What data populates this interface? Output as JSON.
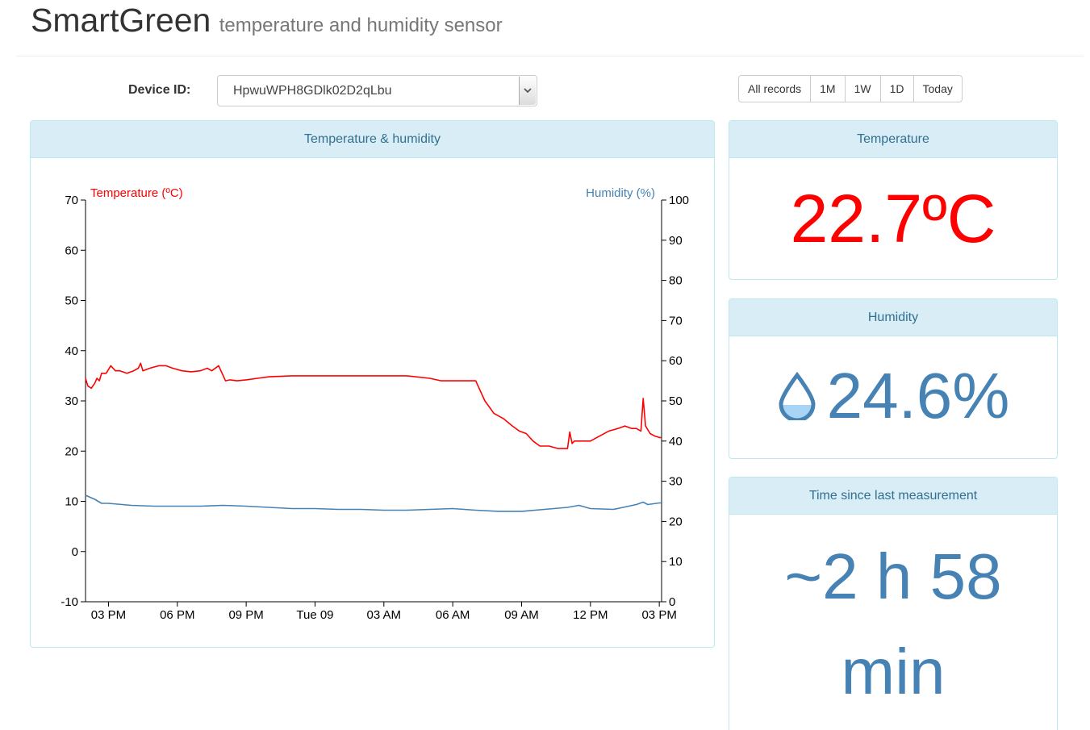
{
  "header": {
    "title": "SmartGreen",
    "subtitle": "temperature and humidity sensor"
  },
  "device": {
    "label": "Device ID:",
    "selected": "HpwuWPH8GDlk02D2qLbu"
  },
  "range_buttons": [
    "All records",
    "1M",
    "1W",
    "1D",
    "Today"
  ],
  "panels": {
    "chart_title": "Temperature & humidity",
    "temperature_title": "Temperature",
    "temperature_value": "22.7ºC",
    "humidity_title": "Humidity",
    "humidity_value": "24.6%",
    "time_title": "Time since last measurement",
    "time_value": "~2 h 58 min"
  },
  "icons": {
    "humidity": "water-drop-icon",
    "select": "chevron-down-icon"
  },
  "colors": {
    "temperature": "#ff0000",
    "humidity": "#4682b4",
    "panel_heading_bg": "#d9edf7",
    "panel_border": "#bce8f1",
    "panel_heading_text": "#31708f"
  },
  "chart_data": {
    "type": "line",
    "x_unit": "hours from 03 PM (Mon 08)",
    "xlim": [
      -1.0,
      24.1
    ],
    "ticks_x": [
      {
        "x": 0,
        "label": "03 PM"
      },
      {
        "x": 3,
        "label": "06 PM"
      },
      {
        "x": 6,
        "label": "09 PM"
      },
      {
        "x": 9,
        "label": "Tue 09"
      },
      {
        "x": 12,
        "label": "03 AM"
      },
      {
        "x": 15,
        "label": "06 AM"
      },
      {
        "x": 18,
        "label": "09 AM"
      },
      {
        "x": 21,
        "label": "12 PM"
      },
      {
        "x": 24,
        "label": "03 PM"
      }
    ],
    "y_left": {
      "label": "Temperature (ºC)",
      "lim": [
        -10,
        70
      ],
      "ticks": [
        -10,
        0,
        10,
        20,
        30,
        40,
        50,
        60,
        70
      ]
    },
    "y_right": {
      "label": "Humidity (%)",
      "lim": [
        0,
        100
      ],
      "ticks": [
        0,
        10,
        20,
        30,
        40,
        50,
        60,
        70,
        80,
        90,
        100
      ]
    },
    "series": [
      {
        "name": "Temperature (ºC)",
        "axis": "left",
        "color": "#ff0000",
        "x": [
          -1.0,
          -0.9,
          -0.75,
          -0.6,
          -0.5,
          -0.4,
          -0.3,
          -0.1,
          0.1,
          0.3,
          0.5,
          0.8,
          1.1,
          1.3,
          1.4,
          1.5,
          1.8,
          2.2,
          2.5,
          2.8,
          3.2,
          3.6,
          4.0,
          4.3,
          4.5,
          4.8,
          5.1,
          5.3,
          5.6,
          6.0,
          6.5,
          7.0,
          8.0,
          9.0,
          10.0,
          11.0,
          12.0,
          13.0,
          14.0,
          14.5,
          14.9,
          15.5,
          16.0,
          16.4,
          16.8,
          17.2,
          17.6,
          17.9,
          18.2,
          18.5,
          18.8,
          19.2,
          19.6,
          20.0,
          20.1,
          20.2,
          20.3,
          20.5,
          21.0,
          21.4,
          21.8,
          22.2,
          22.5,
          22.8,
          23.0,
          23.2,
          23.3,
          23.4,
          23.6,
          23.8,
          24.0,
          24.1
        ],
        "y": [
          34.5,
          33.0,
          32.5,
          33.5,
          34.5,
          34.0,
          35.5,
          35.5,
          37.0,
          36.0,
          36.0,
          35.5,
          36.0,
          36.5,
          37.5,
          36.0,
          36.5,
          37.0,
          37.0,
          36.5,
          36.0,
          35.8,
          36.0,
          36.5,
          36.0,
          37.0,
          34.0,
          34.2,
          34.0,
          34.2,
          34.5,
          34.8,
          35.0,
          35.0,
          35.0,
          35.0,
          35.0,
          35.0,
          34.5,
          34.0,
          34.0,
          34.0,
          34.0,
          30.0,
          27.5,
          26.5,
          25.0,
          24.0,
          23.5,
          22.0,
          21.0,
          21.0,
          20.5,
          20.5,
          23.8,
          21.5,
          22.0,
          22.0,
          22.0,
          23.0,
          24.0,
          24.5,
          25.0,
          24.5,
          24.5,
          24.0,
          30.5,
          25.0,
          23.5,
          23.0,
          22.7,
          22.7
        ]
      },
      {
        "name": "Humidity (%)",
        "axis": "right",
        "color": "#4682b4",
        "x": [
          -1.0,
          -0.6,
          -0.3,
          0.0,
          1.0,
          2.0,
          3.0,
          4.0,
          5.0,
          6.0,
          7.0,
          8.0,
          9.0,
          10.0,
          11.0,
          12.0,
          13.0,
          14.0,
          15.0,
          16.0,
          17.0,
          18.0,
          19.0,
          20.0,
          20.5,
          21.0,
          22.0,
          23.0,
          23.3,
          23.5,
          24.0,
          24.1
        ],
        "y": [
          26.5,
          25.5,
          24.5,
          24.5,
          24.0,
          23.8,
          23.8,
          23.8,
          24.0,
          23.8,
          23.5,
          23.2,
          23.2,
          23.0,
          23.0,
          22.8,
          22.8,
          23.0,
          23.2,
          22.8,
          22.5,
          22.5,
          23.0,
          23.5,
          24.0,
          23.2,
          23.0,
          24.2,
          24.8,
          24.2,
          24.6,
          24.6
        ]
      }
    ]
  }
}
